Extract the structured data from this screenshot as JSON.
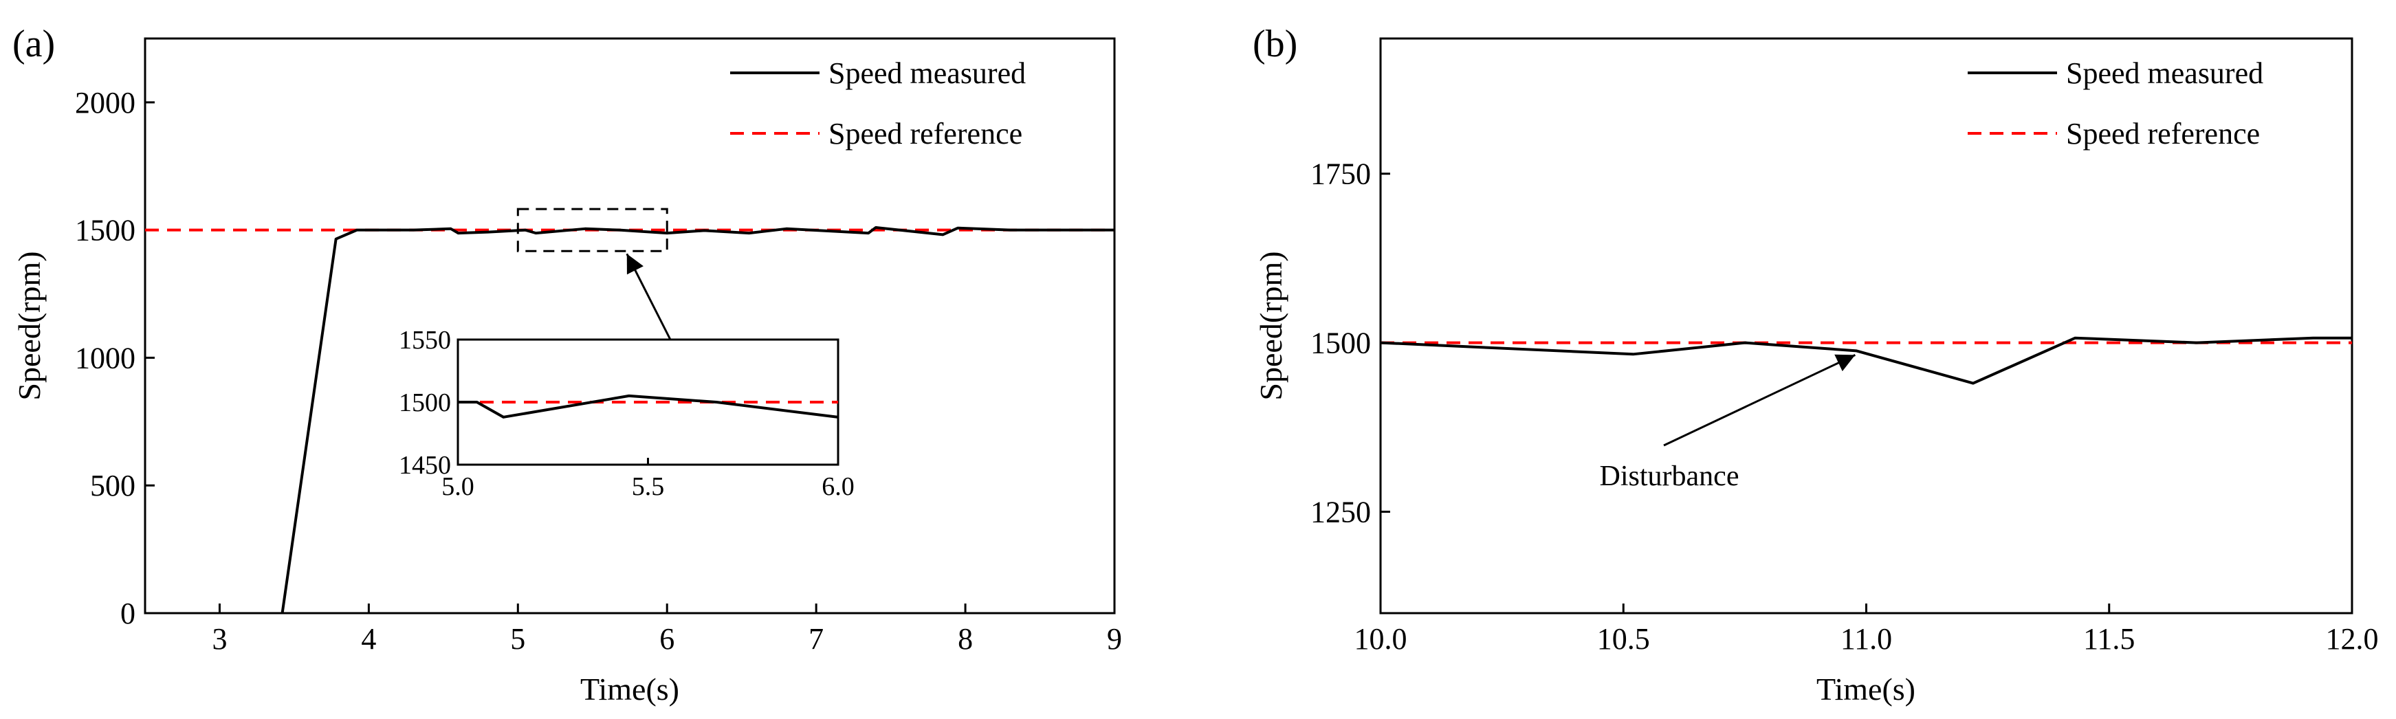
{
  "chart_data": [
    {
      "panel": "(a)",
      "type": "line",
      "xlabel": "Time(s)",
      "ylabel": "Speed(rpm)",
      "xlim": [
        2.5,
        9.0
      ],
      "ylim": [
        0,
        2250
      ],
      "xticks": [
        3,
        4,
        5,
        6,
        7,
        8,
        9
      ],
      "yticks": [
        0,
        500,
        1000,
        1500,
        2000
      ],
      "grid": false,
      "legend_position": "top-right",
      "series": [
        {
          "name": "Speed measured",
          "style": "solid",
          "color": "#000000",
          "x": [
            3.42,
            3.78,
            3.92,
            4.0,
            4.3,
            4.55,
            4.6,
            4.8,
            5.05,
            5.12,
            5.45,
            5.68,
            6.0,
            6.25,
            6.55,
            6.8,
            7.35,
            7.4,
            7.85,
            7.95,
            8.3,
            9.0
          ],
          "y": [
            0,
            1465,
            1500,
            1500,
            1500,
            1505,
            1488,
            1492,
            1500,
            1488,
            1505,
            1500,
            1488,
            1498,
            1488,
            1505,
            1488,
            1510,
            1482,
            1508,
            1500,
            1500
          ]
        },
        {
          "name": "Speed reference",
          "style": "dashed",
          "color": "#ff0000",
          "x": [
            2.5,
            9.0
          ],
          "y": [
            1500,
            1500
          ]
        }
      ],
      "zoom_box": {
        "xlim": [
          5.0,
          6.0
        ],
        "ylim": [
          1450,
          1550
        ]
      },
      "inset": {
        "xlim": [
          5.0,
          6.0
        ],
        "ylim": [
          1450,
          1550
        ],
        "xticks": [
          "5.0",
          "5.5",
          "6.0"
        ],
        "yticks": [
          "1450",
          "1500",
          "1550"
        ],
        "measured": {
          "x": [
            5.0,
            5.05,
            5.12,
            5.45,
            5.68,
            6.0
          ],
          "y": [
            1500,
            1500,
            1488,
            1505,
            1500,
            1488
          ]
        },
        "reference": {
          "x": [
            5.0,
            6.0
          ],
          "y": [
            1500,
            1500
          ]
        }
      }
    },
    {
      "panel": "(b)",
      "type": "line",
      "xlabel": "Time(s)",
      "ylabel": "Speed(rpm)",
      "xlim": [
        10.0,
        12.0
      ],
      "ylim": [
        1100,
        1950
      ],
      "xticks": [
        "10.0",
        "10.5",
        "11.0",
        "11.5",
        "12.0"
      ],
      "yticks": [
        "1250",
        "1500",
        "1750"
      ],
      "grid": false,
      "legend_position": "top-right",
      "series": [
        {
          "name": "Speed measured",
          "style": "solid",
          "color": "#000000",
          "x": [
            10.0,
            10.52,
            10.75,
            10.98,
            11.22,
            11.43,
            11.68,
            11.92,
            12.0
          ],
          "y": [
            1500,
            1483,
            1500,
            1488,
            1440,
            1507,
            1500,
            1507,
            1507
          ]
        },
        {
          "name": "Speed reference",
          "style": "dashed",
          "color": "#ff0000",
          "x": [
            10.0,
            12.0
          ],
          "y": [
            1500,
            1500
          ]
        }
      ],
      "annotation": {
        "text": "Disturbance",
        "arrow_to": {
          "x": 10.98,
          "y": 1488
        }
      }
    }
  ]
}
